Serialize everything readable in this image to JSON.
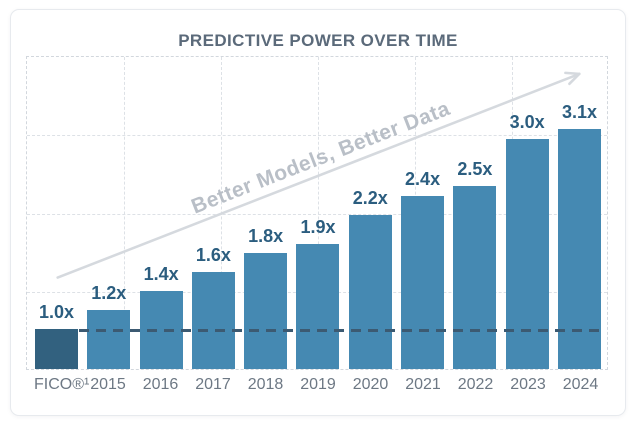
{
  "chart_data": {
    "type": "bar",
    "title": "PREDICTIVE POWER OVER TIME",
    "categories": [
      "FICO®¹",
      "2015",
      "2016",
      "2017",
      "2018",
      "2019",
      "2020",
      "2021",
      "2022",
      "2023",
      "2024"
    ],
    "values": [
      1.0,
      1.2,
      1.4,
      1.6,
      1.8,
      1.9,
      2.2,
      2.4,
      2.5,
      3.0,
      3.1
    ],
    "value_labels": [
      "1.0x",
      "1.2x",
      "1.4x",
      "1.6x",
      "1.8x",
      "1.9x",
      "2.2x",
      "2.4x",
      "2.5x",
      "3.0x",
      "3.1x"
    ],
    "xlabel": "",
    "ylabel": "",
    "annotation": "Better Models, Better Data",
    "annotation_arrow": "diagonal-up-right",
    "baseline": {
      "value": 1.0,
      "style": "dashed"
    },
    "highlight_index": 0,
    "grid": true,
    "legend": "none",
    "colors": {
      "bar": "#4589b2",
      "highlight_bar": "#32617f",
      "value_label": "#2b5d7f",
      "baseline": "#3c5a72",
      "annotation": "#b9bfc7",
      "arrow": "#d5d9de",
      "title": "#5b6a7a",
      "axis_label": "#6d7884"
    }
  }
}
